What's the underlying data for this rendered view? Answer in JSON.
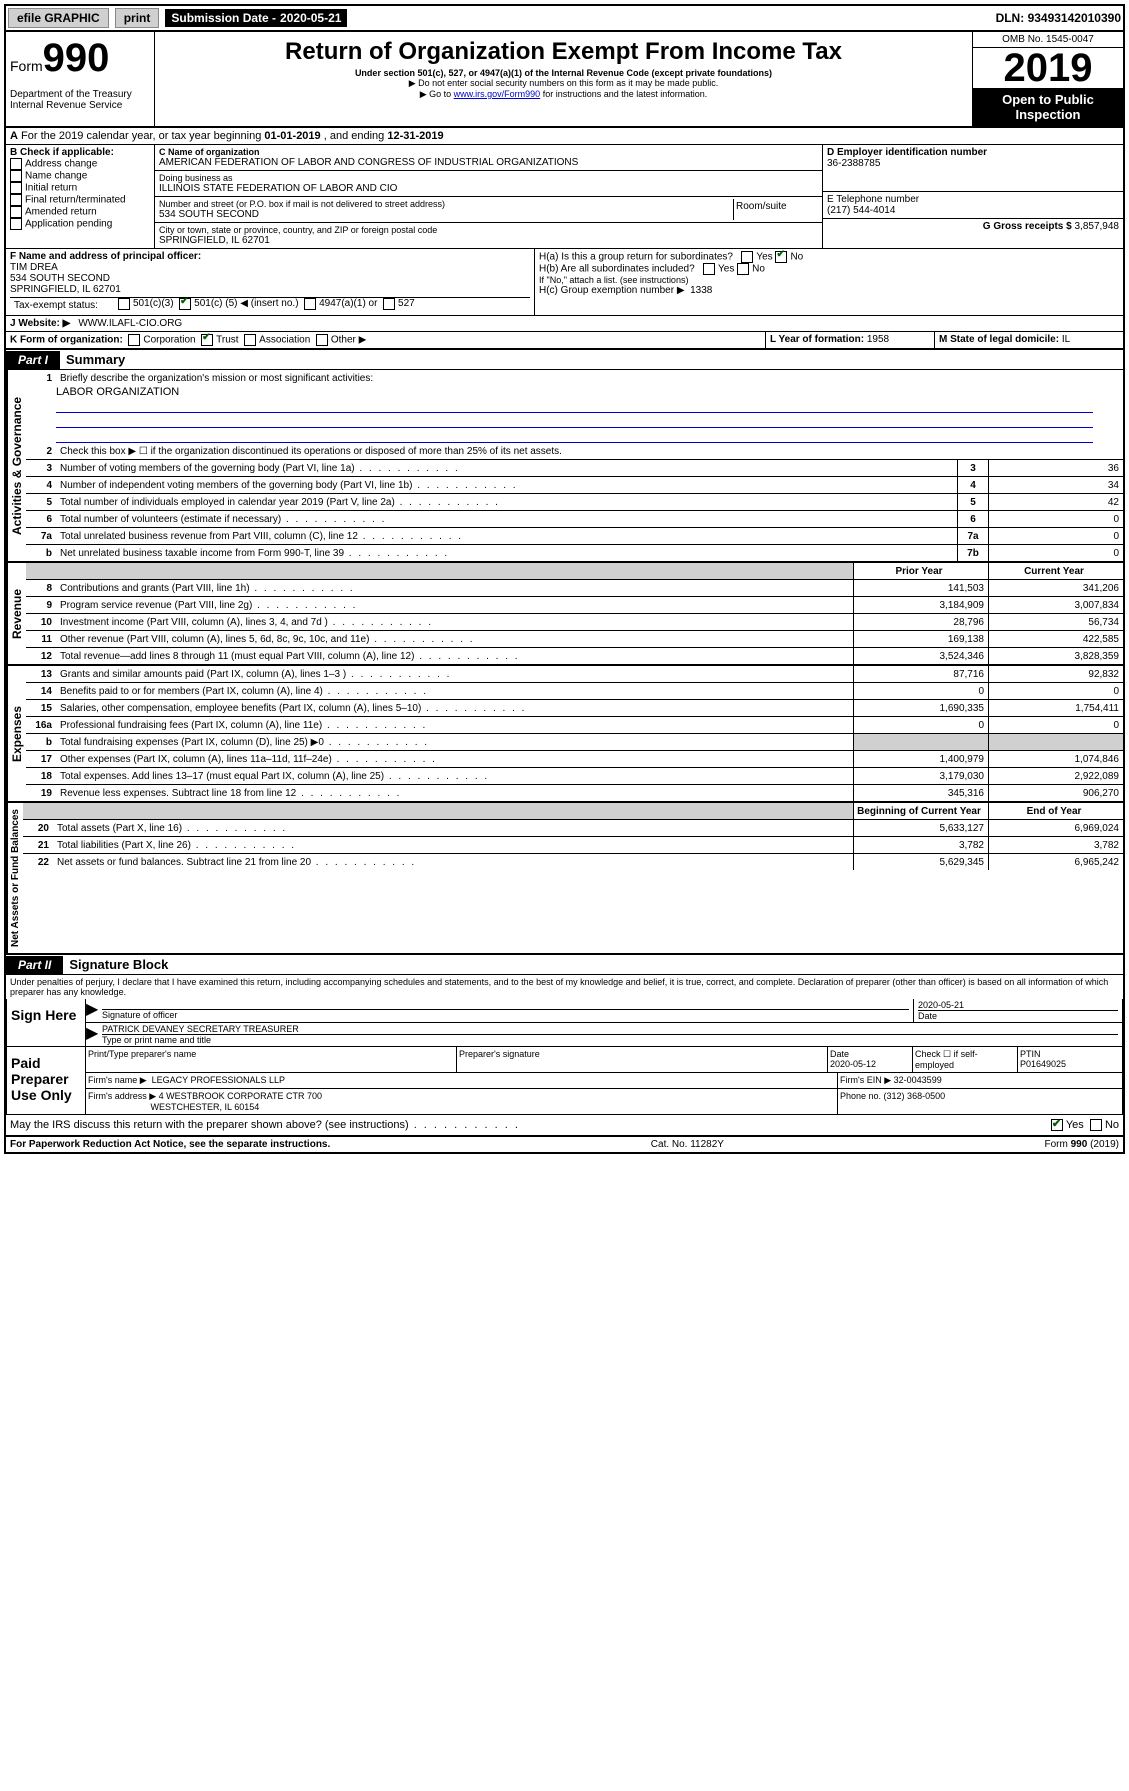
{
  "topbar": {
    "efile": "efile GRAPHIC",
    "print": "print",
    "subdate_label": "Submission Date - ",
    "subdate": "2020-05-21",
    "dln_label": "DLN: ",
    "dln": "93493142010390"
  },
  "header": {
    "form_label": "Form",
    "form_num": "990",
    "title": "Return of Organization Exempt From Income Tax",
    "subtitle": "Under section 501(c), 527, or 4947(a)(1) of the Internal Revenue Code (except private foundations)",
    "note1": "Do not enter social security numbers on this form as it may be made public.",
    "note2_pre": "Go to ",
    "note2_link": "www.irs.gov/Form990",
    "note2_post": " for instructions and the latest information.",
    "omb": "OMB No. 1545-0047",
    "year": "2019",
    "open": "Open to Public Inspection",
    "dept": "Department of the Treasury\nInternal Revenue Service"
  },
  "rowA": {
    "text_pre": "For the 2019 calendar year, or tax year beginning ",
    "begin": "01-01-2019",
    "mid": " , and ending ",
    "end": "12-31-2019"
  },
  "sectionB": {
    "b_label": "B Check if applicable:",
    "opts": [
      "Address change",
      "Name change",
      "Initial return",
      "Final return/terminated",
      "Amended return",
      "Application pending"
    ],
    "c_name_label": "C Name of organization",
    "c_name": "AMERICAN FEDERATION OF LABOR AND CONGRESS OF INDUSTRIAL ORGANIZATIONS",
    "dba_label": "Doing business as",
    "dba": "ILLINOIS STATE FEDERATION OF LABOR AND CIO",
    "addr_label": "Number and street (or P.O. box if mail is not delivered to street address)",
    "room_label": "Room/suite",
    "addr": "534 SOUTH SECOND",
    "city_label": "City or town, state or province, country, and ZIP or foreign postal code",
    "city": "SPRINGFIELD, IL  62701",
    "d_label": "D Employer identification number",
    "d_val": "36-2388785",
    "e_label": "E Telephone number",
    "e_val": "(217) 544-4014",
    "g_label": "G Gross receipts $ ",
    "g_val": "3,857,948"
  },
  "rowF": {
    "f_label": "F  Name and address of principal officer:",
    "f_name": "TIM DREA",
    "f_addr1": "534 SOUTH SECOND",
    "f_addr2": "SPRINGFIELD, IL  62701",
    "ha": "H(a)  Is this a group return for subordinates?",
    "hb": "H(b)  Are all subordinates included?",
    "hb_note": "If \"No,\" attach a list. (see instructions)",
    "hc": "H(c)  Group exemption number ▶",
    "hc_val": "1338",
    "yes": "Yes",
    "no": "No"
  },
  "rowI": {
    "label": "Tax-exempt status:",
    "opt1": "501(c)(3)",
    "opt2_pre": "501(c) ( ",
    "opt2_num": "5",
    "opt2_post": " ) ◀ (insert no.)",
    "opt3": "4947(a)(1) or",
    "opt4": "527"
  },
  "rowJ": {
    "label": "J   Website: ▶",
    "val": "WWW.ILAFL-CIO.ORG"
  },
  "rowK": {
    "label": "K Form of organization:",
    "opts": [
      "Corporation",
      "Trust",
      "Association",
      "Other ▶"
    ],
    "checked": 1,
    "l_label": "L Year of formation: ",
    "l_val": "1958",
    "m_label": "M State of legal domicile: ",
    "m_val": "IL"
  },
  "part1": {
    "label": "Part I",
    "title": "Summary",
    "governance_label": "Activities & Governance",
    "revenue_label": "Revenue",
    "expenses_label": "Expenses",
    "netassets_label": "Net Assets or Fund Balances",
    "l1": "Briefly describe the organization's mission or most significant activities:",
    "l1_val": "LABOR ORGANIZATION",
    "l2": "Check this box ▶ ☐  if the organization discontinued its operations or disposed of more than 25% of its net assets.",
    "prior_year": "Prior Year",
    "current_year": "Current Year",
    "begin_year": "Beginning of Current Year",
    "end_year": "End of Year",
    "lines_gov": [
      {
        "n": "3",
        "t": "Number of voting members of the governing body (Part VI, line 1a)",
        "box": "3",
        "v": "36"
      },
      {
        "n": "4",
        "t": "Number of independent voting members of the governing body (Part VI, line 1b)",
        "box": "4",
        "v": "34"
      },
      {
        "n": "5",
        "t": "Total number of individuals employed in calendar year 2019 (Part V, line 2a)",
        "box": "5",
        "v": "42"
      },
      {
        "n": "6",
        "t": "Total number of volunteers (estimate if necessary)",
        "box": "6",
        "v": "0"
      },
      {
        "n": "7a",
        "t": "Total unrelated business revenue from Part VIII, column (C), line 12",
        "box": "7a",
        "v": "0"
      },
      {
        "n": "b",
        "t": "Net unrelated business taxable income from Form 990-T, line 39",
        "box": "7b",
        "v": "0"
      }
    ],
    "lines_rev": [
      {
        "n": "8",
        "t": "Contributions and grants (Part VIII, line 1h)",
        "py": "141,503",
        "cy": "341,206"
      },
      {
        "n": "9",
        "t": "Program service revenue (Part VIII, line 2g)",
        "py": "3,184,909",
        "cy": "3,007,834"
      },
      {
        "n": "10",
        "t": "Investment income (Part VIII, column (A), lines 3, 4, and 7d )",
        "py": "28,796",
        "cy": "56,734"
      },
      {
        "n": "11",
        "t": "Other revenue (Part VIII, column (A), lines 5, 6d, 8c, 9c, 10c, and 11e)",
        "py": "169,138",
        "cy": "422,585"
      },
      {
        "n": "12",
        "t": "Total revenue—add lines 8 through 11 (must equal Part VIII, column (A), line 12)",
        "py": "3,524,346",
        "cy": "3,828,359"
      }
    ],
    "lines_exp": [
      {
        "n": "13",
        "t": "Grants and similar amounts paid (Part IX, column (A), lines 1–3 )",
        "py": "87,716",
        "cy": "92,832"
      },
      {
        "n": "14",
        "t": "Benefits paid to or for members (Part IX, column (A), line 4)",
        "py": "0",
        "cy": "0"
      },
      {
        "n": "15",
        "t": "Salaries, other compensation, employee benefits (Part IX, column (A), lines 5–10)",
        "py": "1,690,335",
        "cy": "1,754,411"
      },
      {
        "n": "16a",
        "t": "Professional fundraising fees (Part IX, column (A), line 11e)",
        "py": "0",
        "cy": "0"
      },
      {
        "n": "b",
        "t": "Total fundraising expenses (Part IX, column (D), line 25) ▶0",
        "py": "",
        "cy": "",
        "gray": true
      },
      {
        "n": "17",
        "t": "Other expenses (Part IX, column (A), lines 11a–11d, 11f–24e)",
        "py": "1,400,979",
        "cy": "1,074,846"
      },
      {
        "n": "18",
        "t": "Total expenses. Add lines 13–17 (must equal Part IX, column (A), line 25)",
        "py": "3,179,030",
        "cy": "2,922,089"
      },
      {
        "n": "19",
        "t": "Revenue less expenses. Subtract line 18 from line 12",
        "py": "345,316",
        "cy": "906,270"
      }
    ],
    "lines_net": [
      {
        "n": "20",
        "t": "Total assets (Part X, line 16)",
        "py": "5,633,127",
        "cy": "6,969,024"
      },
      {
        "n": "21",
        "t": "Total liabilities (Part X, line 26)",
        "py": "3,782",
        "cy": "3,782"
      },
      {
        "n": "22",
        "t": "Net assets or fund balances. Subtract line 21 from line 20",
        "py": "5,629,345",
        "cy": "6,965,242"
      }
    ]
  },
  "part2": {
    "label": "Part II",
    "title": "Signature Block",
    "declaration": "Under penalties of perjury, I declare that I have examined this return, including accompanying schedules and statements, and to the best of my knowledge and belief, it is true, correct, and complete. Declaration of preparer (other than officer) is based on all information of which preparer has any knowledge.",
    "sign_here": "Sign Here",
    "sig_officer": "Signature of officer",
    "sig_date": "2020-05-21",
    "date_label": "Date",
    "officer_name": "PATRICK DEVANEY  SECRETARY TREASURER",
    "officer_sub": "Type or print name and title",
    "paid": "Paid Preparer Use Only",
    "prep_name_label": "Print/Type preparer's name",
    "prep_sig_label": "Preparer's signature",
    "prep_date_label": "Date",
    "prep_date": "2020-05-12",
    "check_self": "Check ☐ if self-employed",
    "ptin_label": "PTIN",
    "ptin": "P01649025",
    "firm_name_label": "Firm's name     ▶",
    "firm_name": "LEGACY PROFESSIONALS LLP",
    "firm_ein_label": "Firm's EIN ▶",
    "firm_ein": "32-0043599",
    "firm_addr_label": "Firm's address ▶",
    "firm_addr1": "4 WESTBROOK CORPORATE CTR 700",
    "firm_addr2": "WESTCHESTER, IL  60154",
    "phone_label": "Phone no. ",
    "phone": "(312) 368-0500",
    "discuss": "May the IRS discuss this return with the preparer shown above? (see instructions)",
    "yes": "Yes",
    "no": "No"
  },
  "footer": {
    "left": "For Paperwork Reduction Act Notice, see the separate instructions.",
    "mid": "Cat. No. 11282Y",
    "right": "Form 990 (2019)"
  }
}
